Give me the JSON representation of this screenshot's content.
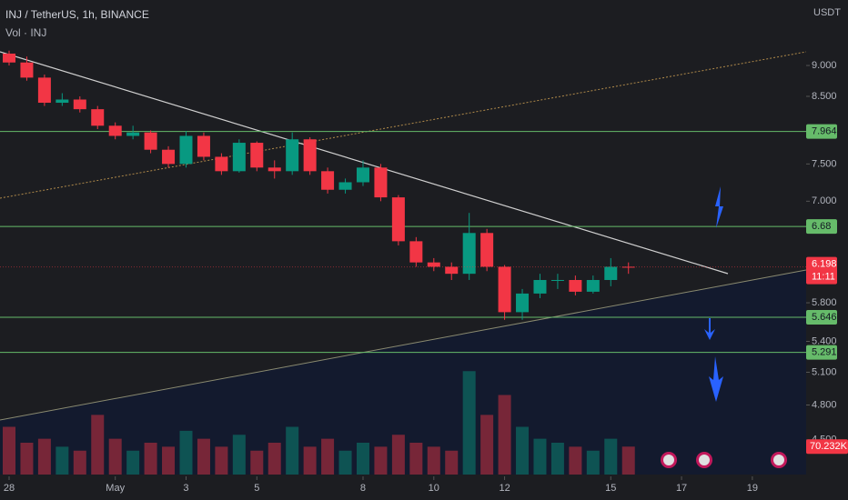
{
  "chart_data": {
    "type": "candlestick",
    "title": "INJ / TetherUS, 1h, BINANCE",
    "subtitle": "Vol · INJ",
    "y_axis_unit": "USDT",
    "countdown": "11:11",
    "volume_label": "70.232K",
    "log": true,
    "grid": false,
    "up_color": "#089981",
    "down_color": "#f23645",
    "level_color": "#66bb6a",
    "xlim": [
      -0.257,
      22.52
    ],
    "ylim": [
      4.22,
      10.16
    ],
    "vlim": [
      0,
      320
    ],
    "xticks": [
      {
        "value": 0,
        "label": "28"
      },
      {
        "value": 3,
        "label": "May"
      },
      {
        "value": 5,
        "label": "3"
      },
      {
        "value": 7,
        "label": "5"
      },
      {
        "value": 10,
        "label": "8"
      },
      {
        "value": 12,
        "label": "10"
      },
      {
        "value": 14,
        "label": "12"
      },
      {
        "value": 17,
        "label": "15"
      },
      {
        "value": 19,
        "label": "17"
      },
      {
        "value": 21,
        "label": "19"
      }
    ],
    "yticks": [
      {
        "value": 9,
        "label": "9.000"
      },
      {
        "value": 8.5,
        "label": "8.500"
      },
      {
        "value": 7.5,
        "label": "7.500"
      },
      {
        "value": 7,
        "label": "7.000"
      },
      {
        "value": 5.8,
        "label": "5.800"
      },
      {
        "value": 5.4,
        "label": "5.400"
      },
      {
        "value": 5.1,
        "label": "5.100"
      },
      {
        "value": 4.8,
        "label": "4.800"
      },
      {
        "value": 4.5,
        "label": "4.500"
      }
    ],
    "levels": [
      7.964,
      6.68,
      5.646,
      5.291
    ],
    "x": [
      0,
      0.5,
      1,
      1.5,
      2,
      2.5,
      3,
      3.5,
      4,
      4.5,
      5,
      5.5,
      6,
      6.5,
      7,
      7.5,
      8,
      8.5,
      9,
      9.5,
      10,
      10.5,
      11,
      11.5,
      12,
      12.5,
      13,
      13.5,
      14,
      14.5,
      15,
      15.5,
      16,
      16.5,
      17,
      17.5
    ],
    "open": [
      9.2,
      9.05,
      8.8,
      8.4,
      8.45,
      8.3,
      8.05,
      7.9,
      7.95,
      7.7,
      7.5,
      7.9,
      7.6,
      7.4,
      7.8,
      7.45,
      7.4,
      7.85,
      7.4,
      7.15,
      7.25,
      7.45,
      7.05,
      6.5,
      6.25,
      6.2,
      6.12,
      6.6,
      6.2,
      5.7,
      5.9,
      6.05,
      6.05,
      5.92,
      6.05,
      6.2
    ],
    "high": [
      9.25,
      9.15,
      8.85,
      8.55,
      8.5,
      8.35,
      8.1,
      8.05,
      7.98,
      7.75,
      7.97,
      7.95,
      7.65,
      7.85,
      7.82,
      7.55,
      7.95,
      7.88,
      7.45,
      7.3,
      7.55,
      7.5,
      7.08,
      6.55,
      6.3,
      6.25,
      6.85,
      6.65,
      6.22,
      5.95,
      6.12,
      6.12,
      6.1,
      6.1,
      6.3,
      6.25
    ],
    "low": [
      9.0,
      8.75,
      8.35,
      8.35,
      8.25,
      8.0,
      7.85,
      7.85,
      7.65,
      7.45,
      7.45,
      7.55,
      7.35,
      7.38,
      7.4,
      7.3,
      7.35,
      7.35,
      7.1,
      7.1,
      7.2,
      7.0,
      6.45,
      6.2,
      6.15,
      6.05,
      6.05,
      6.15,
      5.62,
      5.62,
      5.85,
      5.95,
      5.88,
      5.9,
      5.98,
      6.12
    ],
    "close": [
      9.05,
      8.8,
      8.4,
      8.45,
      8.3,
      8.05,
      7.9,
      7.95,
      7.7,
      7.5,
      7.9,
      7.6,
      7.4,
      7.8,
      7.45,
      7.4,
      7.85,
      7.4,
      7.15,
      7.25,
      7.45,
      7.05,
      6.5,
      6.25,
      6.2,
      6.12,
      6.6,
      6.2,
      5.7,
      5.9,
      6.05,
      6.05,
      5.92,
      6.05,
      6.2,
      6.198
    ],
    "volume": [
      120,
      80,
      90,
      70,
      60,
      150,
      90,
      60,
      80,
      70,
      110,
      90,
      70,
      100,
      60,
      80,
      120,
      70,
      90,
      60,
      80,
      70,
      100,
      80,
      70,
      60,
      260,
      150,
      200,
      120,
      90,
      80,
      70,
      60,
      90,
      70.232
    ]
  }
}
